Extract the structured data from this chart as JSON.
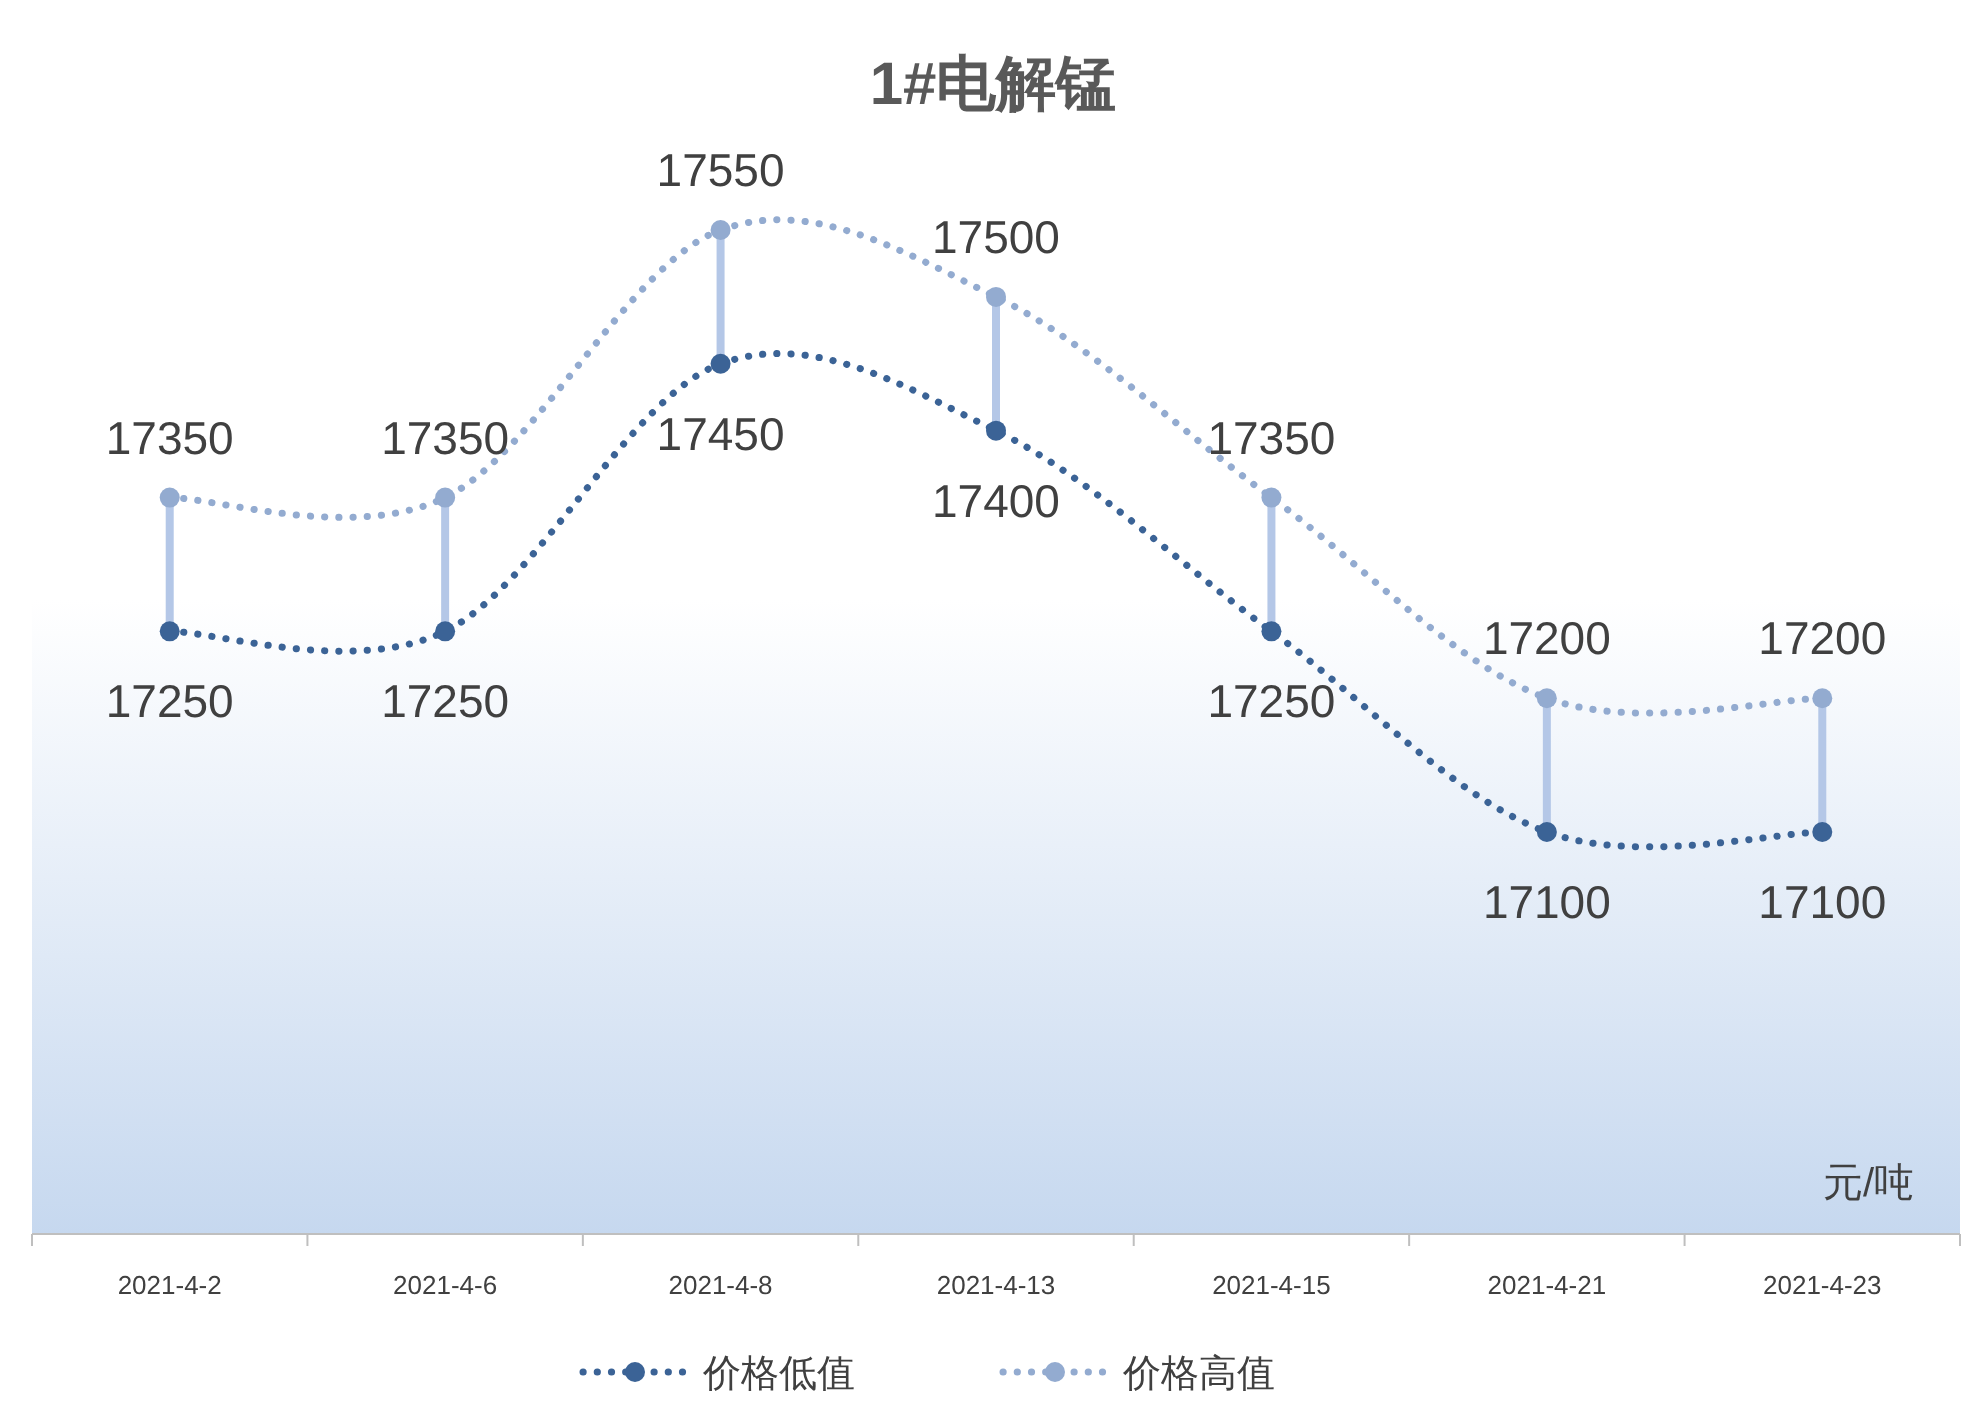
{
  "chart_data": {
    "type": "line",
    "title": "1#电解锰",
    "categories": [
      "2021-4-2",
      "2021-4-6",
      "2021-4-8",
      "2021-4-13",
      "2021-4-15",
      "2021-4-21",
      "2021-4-23"
    ],
    "series": [
      {
        "name": "价格低值",
        "color": "#3b6396",
        "values": [
          17250,
          17250,
          17450,
          17400,
          17250,
          17100,
          17100
        ]
      },
      {
        "name": "价格高值",
        "color": "#93abd0",
        "values": [
          17350,
          17350,
          17550,
          17500,
          17350,
          17200,
          17200
        ]
      }
    ],
    "annotations": [
      "元/吨"
    ],
    "data_labels": true,
    "marker": "circle",
    "line_style": "dotted",
    "legend": "bottom"
  }
}
